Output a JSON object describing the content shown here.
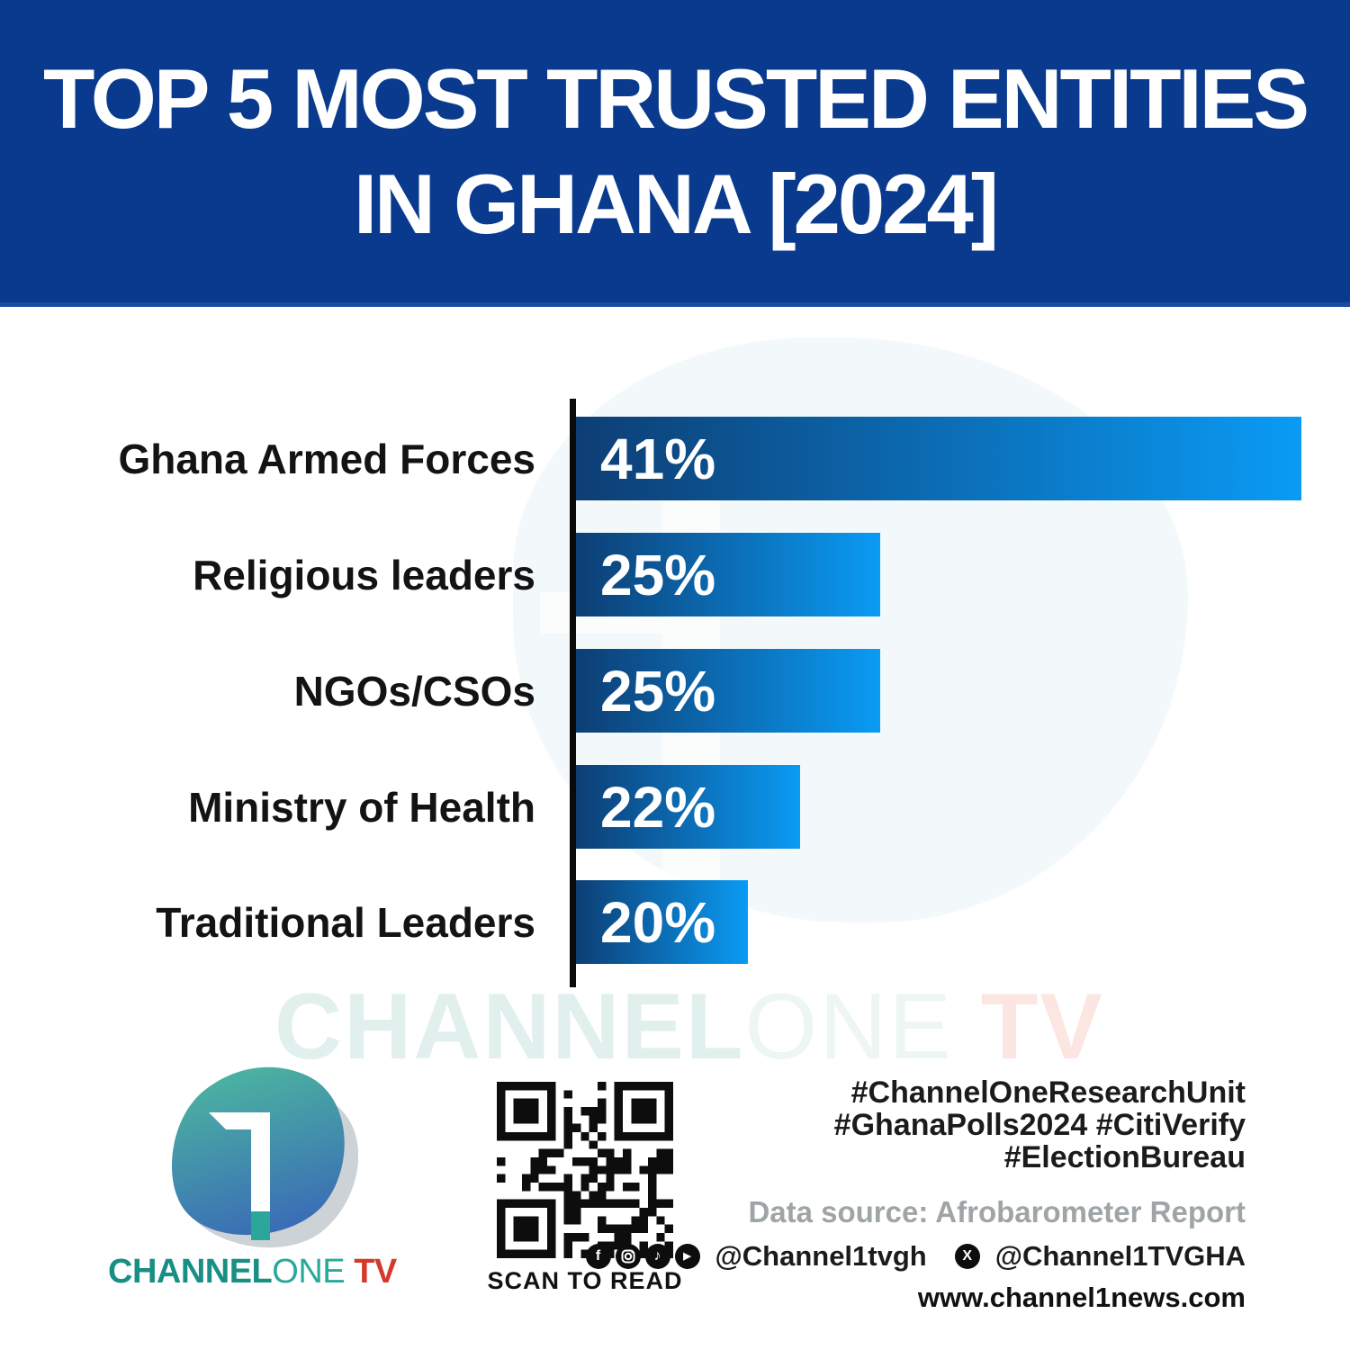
{
  "header": {
    "title_line1": "TOP 5 MOST TRUSTED ENTITIES",
    "title_line2": "IN GHANA [2024]",
    "bg_color": "#093A8E",
    "text_color": "#ffffff"
  },
  "chart_data": {
    "type": "bar",
    "orientation": "horizontal",
    "title": "TOP 5 MOST TRUSTED ENTITIES IN GHANA [2024]",
    "categories": [
      "Ghana Armed Forces",
      "Religious leaders",
      "NGOs/CSOs",
      "Ministry of Health",
      "Traditional Leaders"
    ],
    "values": [
      41,
      25,
      25,
      22,
      20
    ],
    "value_labels": [
      "41%",
      "25%",
      "25%",
      "22%",
      "20%"
    ],
    "bar_display_pct": [
      53.7,
      22.5,
      22.5,
      16.6,
      12.7
    ],
    "bar_gradient_start": "#0d3e74",
    "bar_gradient_end": "#0a9bf4",
    "axis_color": "#0a0a0a",
    "grid": false,
    "legend": false
  },
  "watermark": {
    "channel": "CHANNEL",
    "one": "ONE",
    "tv": " TV"
  },
  "footer": {
    "logo": {
      "icon": "channel-one-pebble-logo",
      "brand_channel": "CHANNEL",
      "brand_one": "ONE",
      "brand_tv": " TV",
      "teal": "#178f84",
      "red": "#d43a2c"
    },
    "qr": {
      "icon": "qr-code",
      "caption": "SCAN TO READ"
    },
    "hashtags": [
      "#ChannelOneResearchUnit",
      "#GhanaPolls2024 #CitiVerify",
      "#ElectionBureau"
    ],
    "data_source": "Data source: Afrobarometer Report",
    "social": {
      "facebook_glyph": "f",
      "tiktok_glyph": "♪",
      "youtube_glyph": "▶",
      "x_glyph": "X",
      "handle1": "@Channel1tvgh",
      "handle2": "@Channel1TVGHA",
      "website": "www.channel1news.com"
    }
  }
}
